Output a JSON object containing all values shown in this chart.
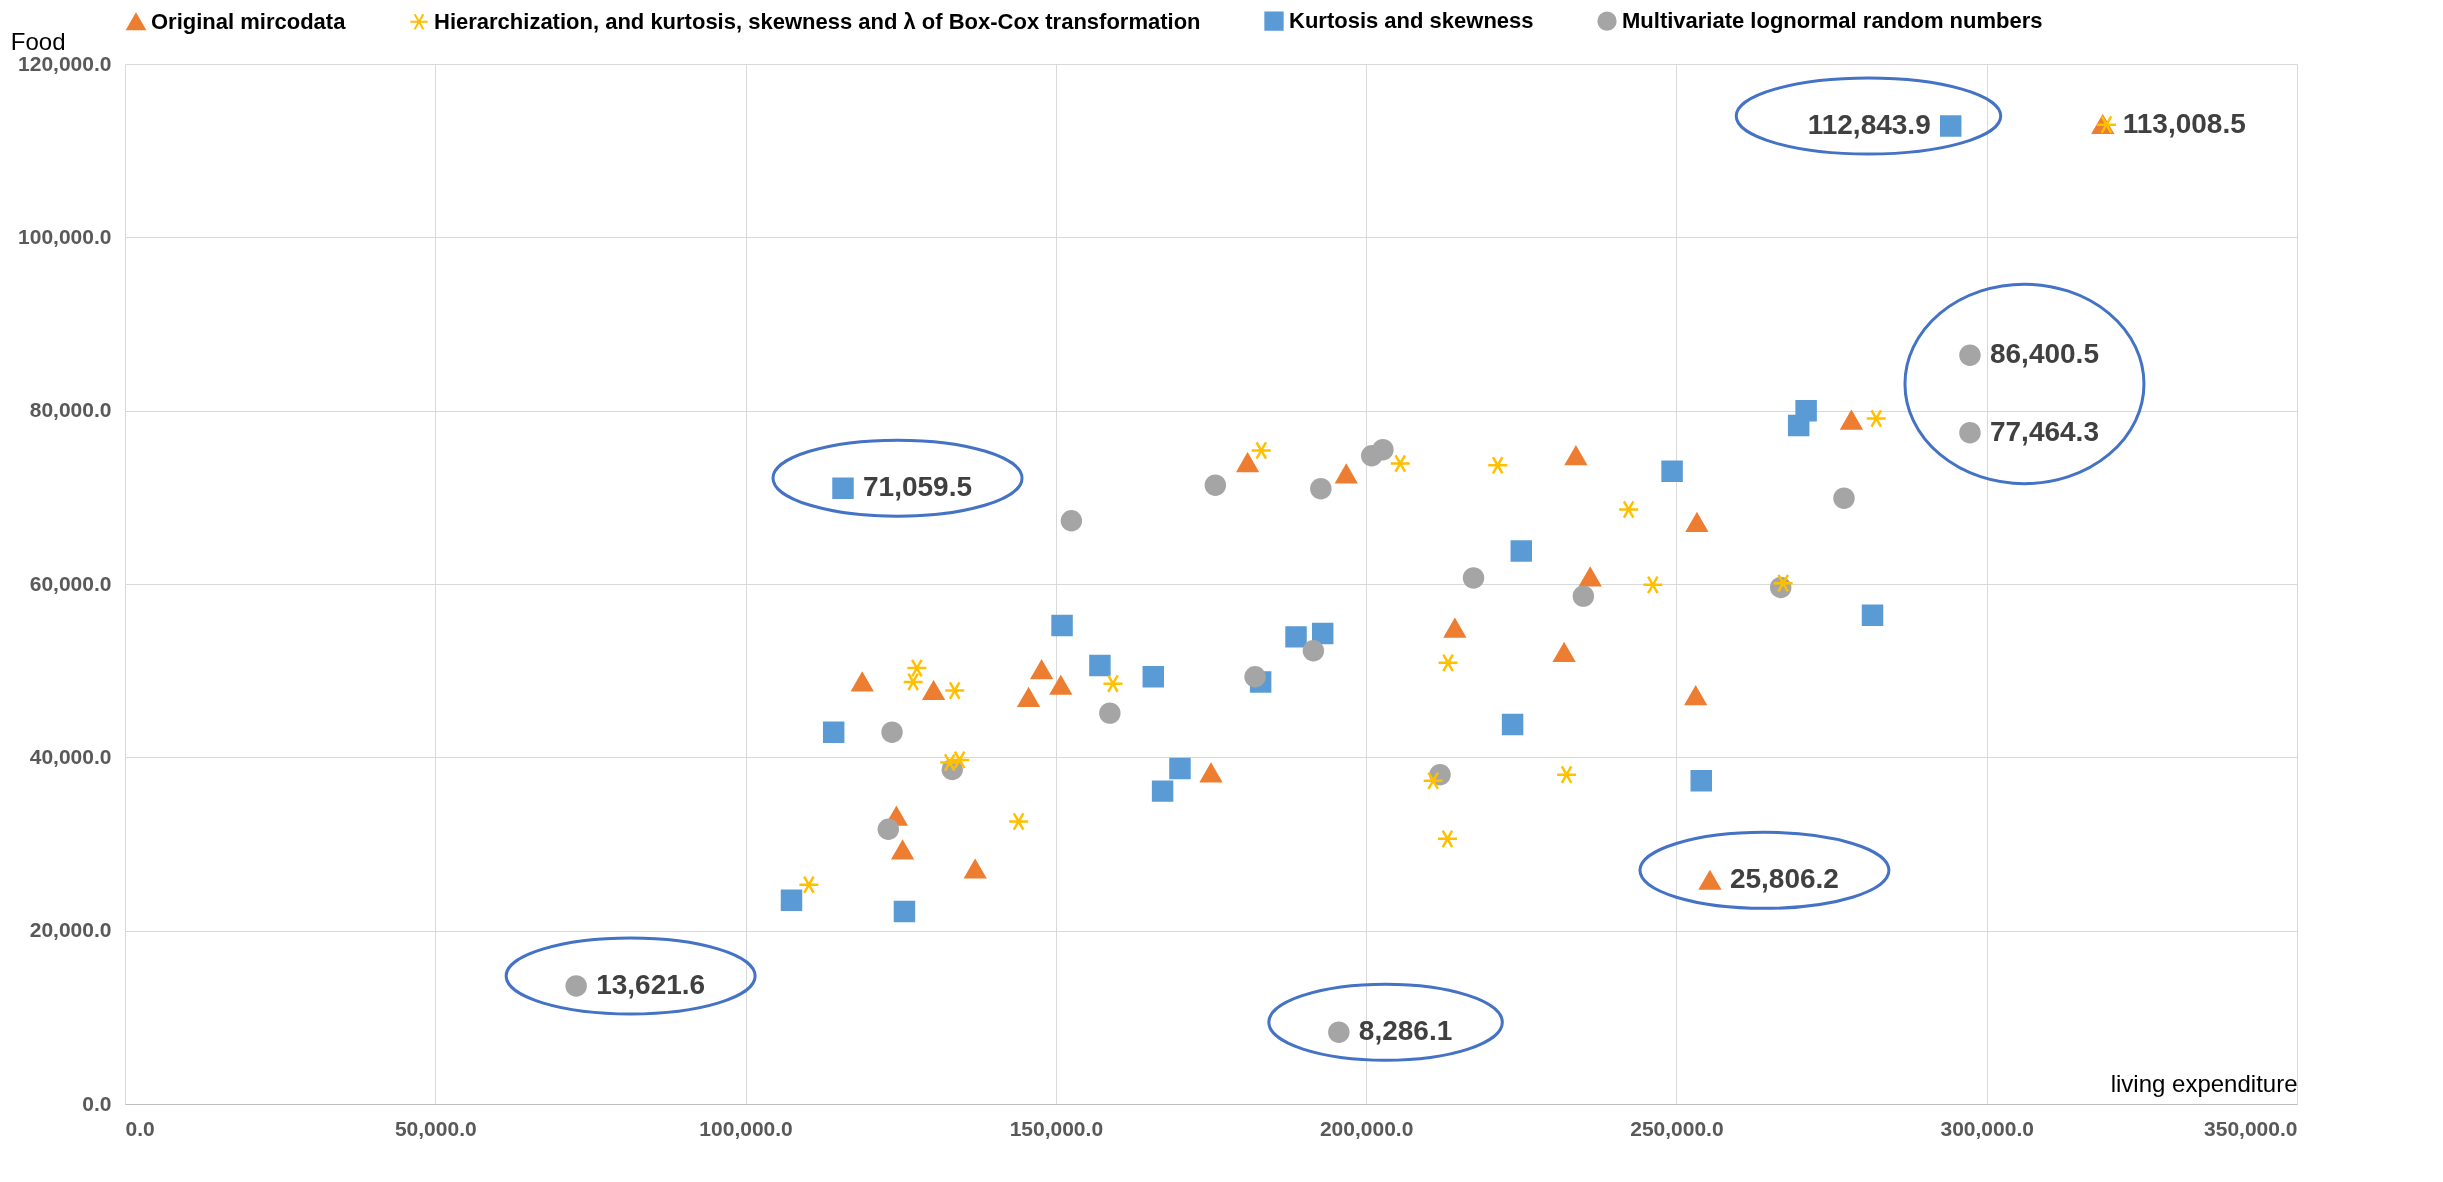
{
  "chart_data": {
    "type": "scatter",
    "xlabel": "living expenditure",
    "ylabel": "Food",
    "xlim": [
      0,
      350000
    ],
    "ylim": [
      0,
      120000
    ],
    "xticks": [
      {
        "value": 0,
        "label": "0.0"
      },
      {
        "value": 50000,
        "label": "50,000.0"
      },
      {
        "value": 100000,
        "label": "100,000.0"
      },
      {
        "value": 150000,
        "label": "150,000.0"
      },
      {
        "value": 200000,
        "label": "200,000.0"
      },
      {
        "value": 250000,
        "label": "250,000.0"
      },
      {
        "value": 300000,
        "label": "300,000.0"
      },
      {
        "value": 350000,
        "label": "350,000.0"
      }
    ],
    "yticks": [
      {
        "value": 0,
        "label": "0.0"
      },
      {
        "value": 20000,
        "label": "20,000.0"
      },
      {
        "value": 40000,
        "label": "40,000.0"
      },
      {
        "value": 60000,
        "label": "60,000.0"
      },
      {
        "value": 80000,
        "label": "80,000.0"
      },
      {
        "value": 100000,
        "label": "100,000.0"
      },
      {
        "value": 120000,
        "label": "120,000.0"
      }
    ],
    "grid": true,
    "legend": "top",
    "series": [
      {
        "name": "Original mircodata",
        "color": "#ed7d31",
        "marker": "triangle",
        "x": [
          118800,
          130300,
          124300,
          125300,
          137000,
          145600,
          147700,
          150800,
          175000,
          180900,
          196800,
          214300,
          231900,
          233800,
          236100,
          253100,
          253300,
          255400,
          278200,
          318700
        ],
        "values": [
          48700,
          47700,
          33200,
          29300,
          27100,
          46900,
          50100,
          48300,
          38200,
          74000,
          72700,
          54900,
          52100,
          74800,
          60800,
          47100,
          67100,
          25806.2,
          78900,
          113008.5
        ],
        "value_labels": [
          null,
          null,
          null,
          null,
          null,
          null,
          null,
          null,
          null,
          null,
          null,
          null,
          null,
          null,
          null,
          null,
          null,
          "25,806.2",
          null,
          "113,008.5"
        ]
      },
      {
        "name": "Hierarchization, and kurtosis, skewness and λ of Box-Cox transformation",
        "color": "#ffc000",
        "marker": "cross",
        "x": [
          110200,
          127000,
          127600,
          133700,
          132900,
          134500,
          144000,
          159200,
          183100,
          205500,
          221200,
          213200,
          213100,
          210800,
          232300,
          242300,
          246200,
          267200,
          282200,
          319300
        ],
        "values": [
          25300,
          48700,
          50300,
          47700,
          39400,
          39700,
          32600,
          48500,
          75400,
          73900,
          73700,
          50900,
          30600,
          37300,
          38000,
          68600,
          59900,
          60100,
          79100,
          113000
        ]
      },
      {
        "name": "Kurtosis and skewness",
        "color": "#5b9bd5",
        "marker": "square",
        "x": [
          107400,
          114200,
          115700,
          125600,
          151000,
          157100,
          165700,
          167200,
          170000,
          183000,
          188700,
          193000,
          223600,
          225000,
          249300,
          254000,
          269700,
          270900,
          281600,
          294200
        ],
        "values": [
          23500,
          42900,
          71059.5,
          22200,
          55200,
          50600,
          49300,
          36100,
          38700,
          48700,
          53900,
          54300,
          43800,
          63800,
          73000,
          37300,
          78300,
          80000,
          56400,
          112843.9
        ],
        "value_labels": [
          null,
          null,
          "71,059.5",
          null,
          null,
          null,
          null,
          null,
          null,
          null,
          null,
          null,
          null,
          null,
          null,
          null,
          null,
          null,
          null,
          "112,843.9"
        ]
      },
      {
        "name": "Multivariate lognormal random numbers",
        "color": "#a5a5a5",
        "marker": "circle",
        "x": [
          72700,
          123000,
          123600,
          133300,
          152500,
          158700,
          175700,
          182100,
          191500,
          192700,
          195600,
          200900,
          202700,
          211900,
          217300,
          235000,
          266800,
          277000,
          297300,
          297300
        ],
        "values": [
          13621.6,
          31700,
          42900,
          38600,
          67300,
          45100,
          71400,
          49300,
          52300,
          71000,
          8286.1,
          74800,
          75500,
          38000,
          60700,
          58600,
          59600,
          69900,
          86400.5,
          77464.3
        ],
        "value_labels": [
          "13,621.6",
          null,
          null,
          null,
          null,
          null,
          null,
          null,
          null,
          null,
          "8,286.1",
          null,
          null,
          null,
          null,
          null,
          null,
          null,
          "86,400.5",
          "77,464.3"
        ]
      }
    ]
  }
}
